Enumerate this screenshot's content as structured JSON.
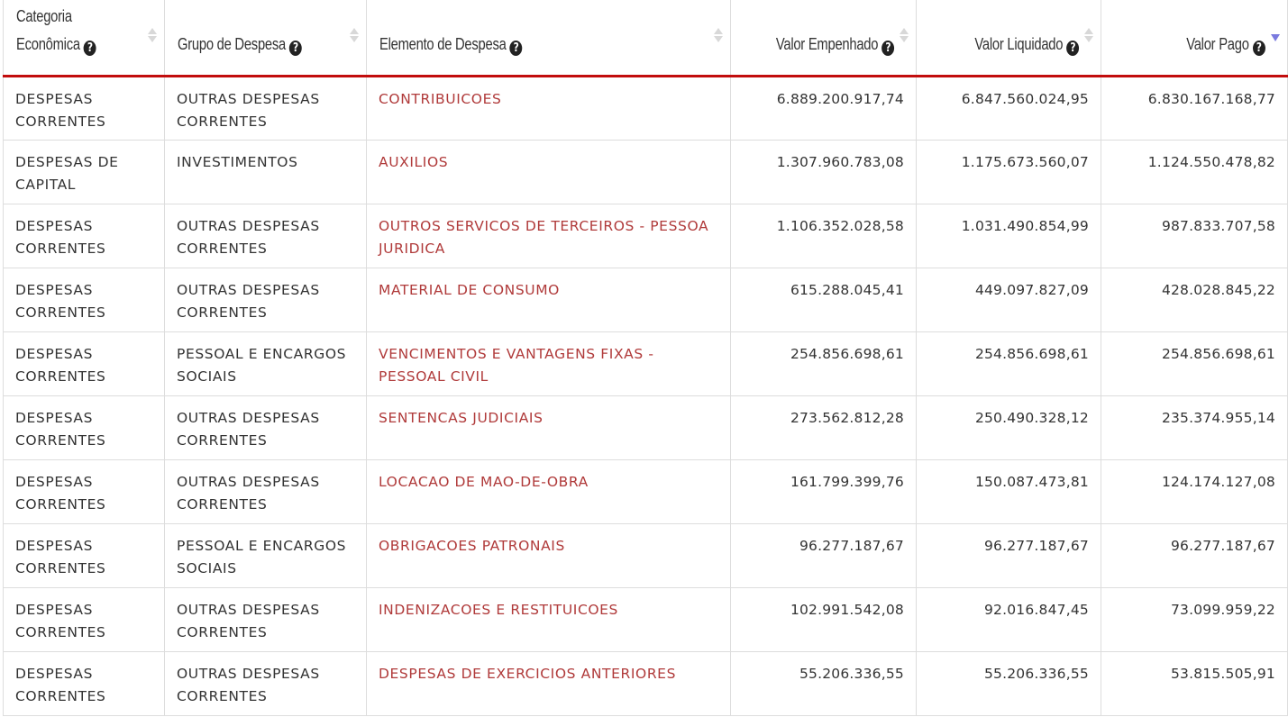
{
  "table": {
    "columns": [
      {
        "key": "categoria",
        "label": "Categoria Econômica",
        "align": "left",
        "sort": "none"
      },
      {
        "key": "grupo",
        "label": "Grupo de Despesa",
        "align": "left",
        "sort": "none"
      },
      {
        "key": "elemento",
        "label": "Elemento de Despesa",
        "align": "left",
        "sort": "none"
      },
      {
        "key": "empenhado",
        "label": "Valor Empenhado",
        "align": "right",
        "sort": "none"
      },
      {
        "key": "liquidado",
        "label": "Valor Liquidado",
        "align": "right",
        "sort": "none"
      },
      {
        "key": "pago",
        "label": "Valor Pago",
        "align": "right",
        "sort": "descending"
      }
    ],
    "help_icon": "question-circle-icon",
    "rows": [
      {
        "categoria": "DESPESAS CORRENTES",
        "grupo": "OUTRAS DESPESAS CORRENTES",
        "elemento": "CONTRIBUICOES",
        "empenhado": "6.889.200.917,74",
        "liquidado": "6.847.560.024,95",
        "pago": "6.830.167.168,77"
      },
      {
        "categoria": "DESPESAS DE CAPITAL",
        "grupo": "INVESTIMENTOS",
        "elemento": "AUXILIOS",
        "empenhado": "1.307.960.783,08",
        "liquidado": "1.175.673.560,07",
        "pago": "1.124.550.478,82"
      },
      {
        "categoria": "DESPESAS CORRENTES",
        "grupo": "OUTRAS DESPESAS CORRENTES",
        "elemento": "OUTROS SERVICOS DE TERCEIROS - PESSOA JURIDICA",
        "empenhado": "1.106.352.028,58",
        "liquidado": "1.031.490.854,99",
        "pago": "987.833.707,58"
      },
      {
        "categoria": "DESPESAS CORRENTES",
        "grupo": "OUTRAS DESPESAS CORRENTES",
        "elemento": "MATERIAL DE CONSUMO",
        "empenhado": "615.288.045,41",
        "liquidado": "449.097.827,09",
        "pago": "428.028.845,22"
      },
      {
        "categoria": "DESPESAS CORRENTES",
        "grupo": "PESSOAL E ENCARGOS SOCIAIS",
        "elemento": "VENCIMENTOS E VANTAGENS FIXAS - PESSOAL CIVIL",
        "empenhado": "254.856.698,61",
        "liquidado": "254.856.698,61",
        "pago": "254.856.698,61"
      },
      {
        "categoria": "DESPESAS CORRENTES",
        "grupo": "OUTRAS DESPESAS CORRENTES",
        "elemento": "SENTENCAS JUDICIAIS",
        "empenhado": "273.562.812,28",
        "liquidado": "250.490.328,12",
        "pago": "235.374.955,14"
      },
      {
        "categoria": "DESPESAS CORRENTES",
        "grupo": "OUTRAS DESPESAS CORRENTES",
        "elemento": "LOCACAO DE MAO-DE-OBRA",
        "empenhado": "161.799.399,76",
        "liquidado": "150.087.473,81",
        "pago": "124.174.127,08"
      },
      {
        "categoria": "DESPESAS CORRENTES",
        "grupo": "PESSOAL E ENCARGOS SOCIAIS",
        "elemento": "OBRIGACOES PATRONAIS",
        "empenhado": "96.277.187,67",
        "liquidado": "96.277.187,67",
        "pago": "96.277.187,67"
      },
      {
        "categoria": "DESPESAS CORRENTES",
        "grupo": "OUTRAS DESPESAS CORRENTES",
        "elemento": "INDENIZACOES E RESTITUICOES",
        "empenhado": "102.991.542,08",
        "liquidado": "92.016.847,45",
        "pago": "73.099.959,22"
      },
      {
        "categoria": "DESPESAS CORRENTES",
        "grupo": "OUTRAS DESPESAS CORRENTES",
        "elemento": "DESPESAS DE EXERCICIOS ANTERIORES",
        "empenhado": "55.206.336,55",
        "liquidado": "55.206.336,55",
        "pago": "53.815.505,91"
      }
    ]
  },
  "colors": {
    "header_border": "#c20d0d",
    "link": "#b03a3a",
    "text": "#333333",
    "grid": "#dddddd",
    "sort_inactive": "#d8d8d8",
    "sort_active": "#7a7adf"
  }
}
